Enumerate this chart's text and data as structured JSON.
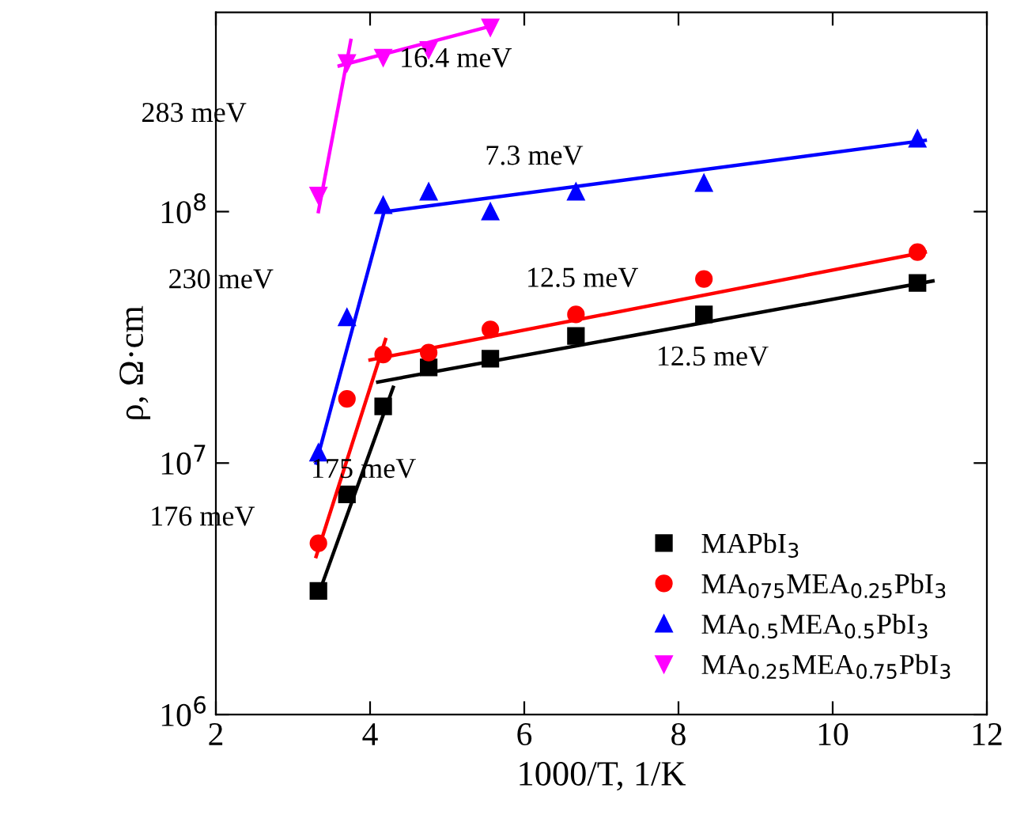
{
  "chart_data": {
    "type": "scatter",
    "xlabel": "1000/T, 1/K",
    "ylabel": "ρ, Ω·cm",
    "log": "y",
    "xlim": [
      2,
      12
    ],
    "xticks": [
      2,
      4,
      6,
      8,
      10,
      12
    ],
    "ylim": [
      1000000,
      620000000
    ],
    "yticks": [
      {
        "value": 1000000,
        "label": "10$^{6}$"
      },
      {
        "value": 10000000,
        "label": "10$^{7}$"
      },
      {
        "value": 100000000,
        "label": "10$^{8}$"
      }
    ],
    "grid": false,
    "legend": "bottom right",
    "series": [
      {
        "name": "MAPbI$_{3}$",
        "color": "#000000",
        "marker": "square",
        "x": [
          3.33,
          3.7,
          4.17,
          4.76,
          5.56,
          6.67,
          8.33,
          11.1
        ],
        "values": [
          3100000,
          7500000,
          16800000,
          24000000,
          26000000,
          32000000,
          39000000,
          52000000
        ]
      },
      {
        "name": "MA$_{075}$MEA$_{0.25}$PbI$_{3}$",
        "color": "#ff0000",
        "marker": "circle",
        "x": [
          3.33,
          3.7,
          4.17,
          4.76,
          5.56,
          6.67,
          8.33,
          11.1
        ],
        "values": [
          4800000,
          18000000,
          27000000,
          27500000,
          34000000,
          39000000,
          54000000,
          69000000
        ]
      },
      {
        "name": "MA$_{0.5}$MEA$_{0.5}$PbI$_{3}$",
        "color": "#0000ff",
        "marker": "triangle",
        "x": [
          3.33,
          3.7,
          4.17,
          4.76,
          5.56,
          6.67,
          8.33,
          11.1
        ],
        "values": [
          11000000,
          38000000,
          106000000,
          120000000,
          100000000,
          120000000,
          130000000,
          195000000
        ]
      },
      {
        "name": "MA$_{0.25}$MEA$_{0.75}$PbI$_{3}$",
        "color": "#ff00ff",
        "marker": "triangle_down",
        "x": [
          3.33,
          3.7,
          4.17,
          4.76,
          5.56
        ],
        "values": [
          116000000,
          390000000,
          410000000,
          440000000,
          540000000
        ]
      },
      {
        "type": "line",
        "color": "#000000",
        "x": [
          3.33,
          4.3
        ],
        "values": [
          3000000,
          20000000
        ]
      },
      {
        "type": "line",
        "color": "#000000",
        "x": [
          4.1,
          11.3
        ],
        "values": [
          21000000,
          53000000
        ]
      },
      {
        "type": "line",
        "color": "#ff0000",
        "x": [
          3.3,
          4.2
        ],
        "values": [
          4250000,
          31000000
        ]
      },
      {
        "type": "line",
        "color": "#ff0000",
        "x": [
          4.0,
          11.2
        ],
        "values": [
          25700000,
          69000000
        ]
      },
      {
        "type": "line",
        "color": "#0000ff",
        "x": [
          3.3,
          4.2
        ],
        "values": [
          10000000,
          105000000
        ]
      },
      {
        "type": "line",
        "color": "#0000ff",
        "x": [
          4.2,
          11.2
        ],
        "values": [
          100000000,
          192000000
        ]
      },
      {
        "type": "line",
        "color": "#ff00ff",
        "x": [
          3.33,
          3.75
        ],
        "values": [
          100000000,
          480000000
        ]
      },
      {
        "type": "line",
        "color": "#ff00ff",
        "x": [
          3.6,
          5.6
        ],
        "values": [
          380000000,
          550000000
        ]
      }
    ],
    "annotations": [
      "283 meV",
      "16.4 meV",
      "230 meV",
      "7.3 meV",
      "12.5 meV",
      "12.5 meV",
      "175 meV",
      "176 meV"
    ]
  }
}
